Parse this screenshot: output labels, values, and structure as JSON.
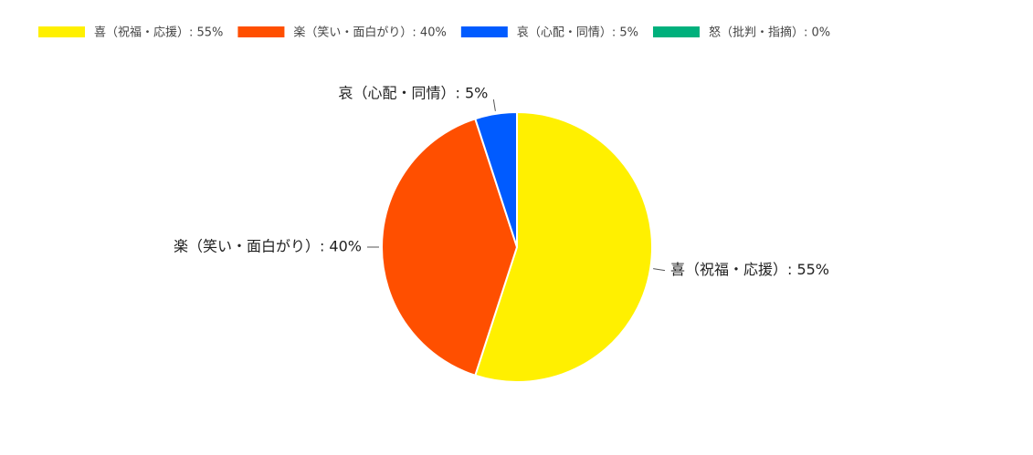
{
  "chart_data": {
    "type": "pie",
    "value_labels": [
      "喜（祝福・応援）: 55%",
      "楽（笑い・面白がり）: 40%",
      "哀（心配・同情）: 5%",
      "怒（批判・指摘）: 0%"
    ],
    "values": [
      55,
      40,
      5,
      0
    ],
    "colors": [
      "#fff000",
      "#ff4f00",
      "#005bff",
      "#00b07c"
    ],
    "legend": "top"
  }
}
